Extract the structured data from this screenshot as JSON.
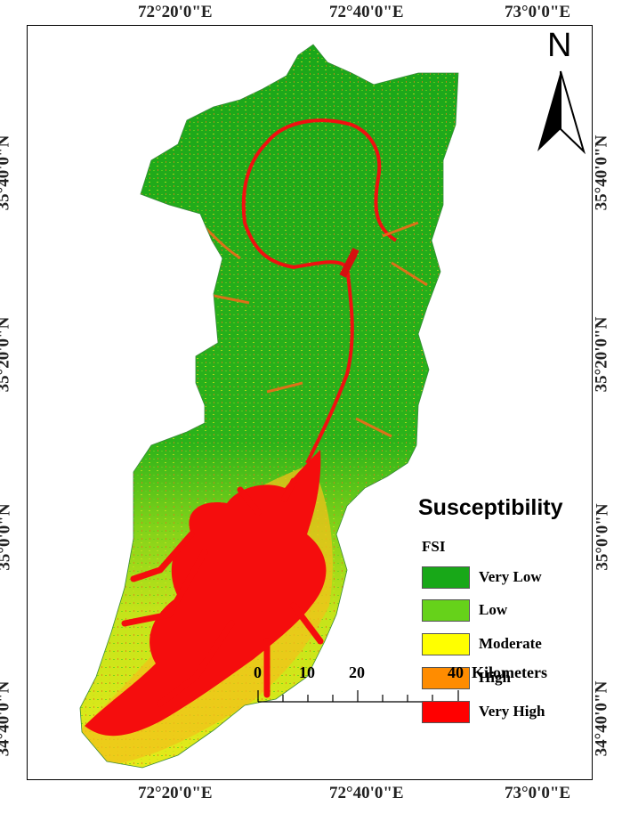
{
  "top_labels": [
    "72°20'0\"E",
    "72°40'0\"E",
    "73°0'0\"E"
  ],
  "bottom_labels": [
    "72°20'0\"E",
    "72°40'0\"E",
    "73°0'0\"E"
  ],
  "left_labels": [
    "35°40'0\"N",
    "35°20'0\"N",
    "35°0'0\"N",
    "34°40'0\"N"
  ],
  "right_labels": [
    "35°40'0\"N",
    "35°20'0\"N",
    "35°0'0\"N",
    "34°40'0\"N"
  ],
  "north": "N",
  "legend": {
    "title": "Susceptibility",
    "subtitle": "FSI",
    "items": [
      {
        "label": "Very Low",
        "color": "#18a818"
      },
      {
        "label": "Low",
        "color": "#66d21a"
      },
      {
        "label": "Moderate",
        "color": "#ffff00"
      },
      {
        "label": "High",
        "color": "#ff8c00"
      },
      {
        "label": "Very High",
        "color": "#ff0000"
      }
    ]
  },
  "scale": {
    "ticks": [
      "0",
      "10",
      "20",
      "40"
    ],
    "unit": "Kilometers"
  }
}
